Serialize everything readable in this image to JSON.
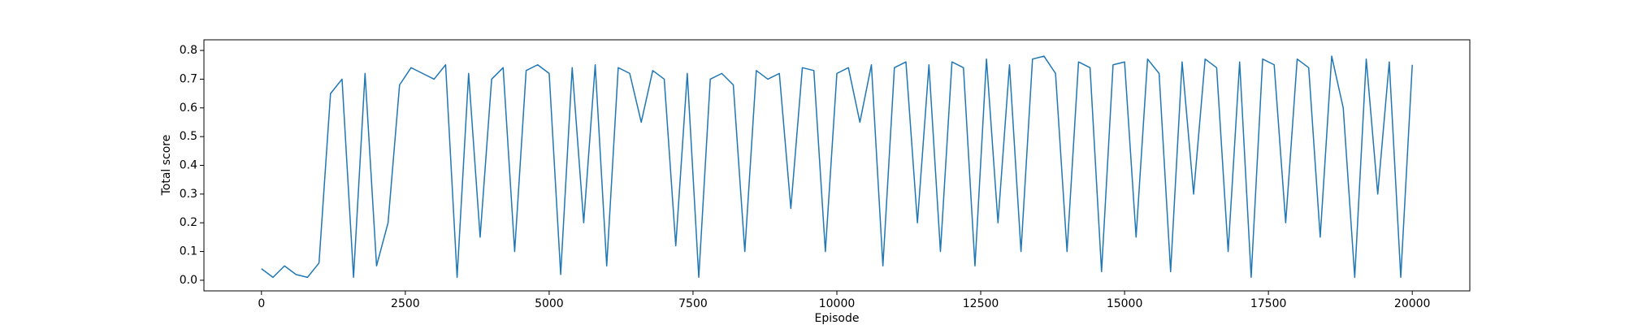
{
  "chart_data": {
    "type": "line",
    "xlabel": "Episode",
    "ylabel": "Total score",
    "x": [
      0,
      200,
      400,
      600,
      800,
      1000,
      1200,
      1400,
      1600,
      1800,
      2000,
      2200,
      2400,
      2600,
      2800,
      3000,
      3200,
      3400,
      3600,
      3800,
      4000,
      4200,
      4400,
      4600,
      4800,
      5000,
      5200,
      5400,
      5600,
      5800,
      6000,
      6200,
      6400,
      6600,
      6800,
      7000,
      7200,
      7400,
      7600,
      7800,
      8000,
      8200,
      8400,
      8600,
      8800,
      9000,
      9200,
      9400,
      9600,
      9800,
      10000,
      10200,
      10400,
      10600,
      10800,
      11000,
      11200,
      11400,
      11600,
      11800,
      12000,
      12200,
      12400,
      12600,
      12800,
      13000,
      13200,
      13400,
      13600,
      13800,
      14000,
      14200,
      14400,
      14600,
      14800,
      15000,
      15200,
      15400,
      15600,
      15800,
      16000,
      16200,
      16400,
      16600,
      16800,
      17000,
      17200,
      17400,
      17600,
      17800,
      18000,
      18200,
      18400,
      18600,
      18800,
      19000,
      19200,
      19400,
      19600,
      19800,
      20000
    ],
    "series": [
      {
        "color": "#1f77b4",
        "values": [
          0.04,
          0.01,
          0.05,
          0.02,
          0.01,
          0.06,
          0.65,
          0.7,
          0.01,
          0.72,
          0.05,
          0.2,
          0.68,
          0.74,
          0.72,
          0.7,
          0.75,
          0.01,
          0.72,
          0.15,
          0.7,
          0.74,
          0.1,
          0.73,
          0.75,
          0.72,
          0.02,
          0.74,
          0.2,
          0.75,
          0.05,
          0.74,
          0.72,
          0.55,
          0.73,
          0.7,
          0.12,
          0.72,
          0.01,
          0.7,
          0.72,
          0.68,
          0.1,
          0.73,
          0.7,
          0.72,
          0.25,
          0.74,
          0.73,
          0.1,
          0.72,
          0.74,
          0.55,
          0.75,
          0.05,
          0.74,
          0.76,
          0.2,
          0.75,
          0.1,
          0.76,
          0.74,
          0.05,
          0.77,
          0.2,
          0.75,
          0.1,
          0.77,
          0.78,
          0.72,
          0.1,
          0.76,
          0.74,
          0.03,
          0.75,
          0.76,
          0.15,
          0.77,
          0.72,
          0.03,
          0.76,
          0.3,
          0.77,
          0.74,
          0.1,
          0.76,
          0.01,
          0.77,
          0.75,
          0.2,
          0.77,
          0.74,
          0.15,
          0.78,
          0.6,
          0.01,
          0.77,
          0.3,
          0.76,
          0.01,
          0.75
        ]
      }
    ],
    "xlim": [
      -1000,
      21000
    ],
    "xticks": [
      0,
      2500,
      5000,
      7500,
      10000,
      12500,
      15000,
      17500,
      20000
    ],
    "ylim": [
      -0.037,
      0.837
    ],
    "yticks": [
      {
        "value": 0,
        "label": "0.0"
      },
      0.1,
      0.2,
      0.3,
      0.4,
      0.5,
      0.6,
      0.7,
      0.8
    ]
  }
}
